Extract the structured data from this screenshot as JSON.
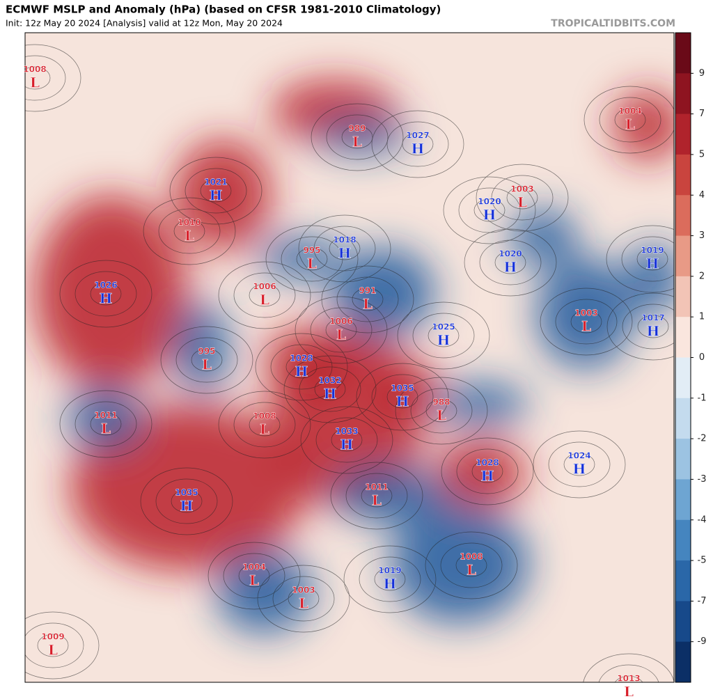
{
  "header": {
    "title": "ECMWF MSLP and Anomaly (hPa) (based on CFSR 1981-2010 Climatology)",
    "subtitle": "Init: 12z May 20 2024   [Analysis]   valid at 12z Mon, May 20 2024",
    "source": "TROPICALTIDBITS.COM"
  },
  "colorbar": {
    "ticks": [
      9,
      7,
      5,
      4,
      3,
      2,
      1,
      0,
      -1,
      -2,
      -3,
      -4,
      -5,
      -7,
      -9
    ]
  },
  "centers": [
    {
      "kind": "L",
      "value": 1008
    },
    {
      "kind": "L",
      "value": 989
    },
    {
      "kind": "H",
      "value": 1027
    },
    {
      "kind": "L",
      "value": 1004
    },
    {
      "kind": "H",
      "value": 1021
    },
    {
      "kind": "L",
      "value": 1003
    },
    {
      "kind": "H",
      "value": 1020
    },
    {
      "kind": "L",
      "value": 1010
    },
    {
      "kind": "H",
      "value": 1018
    },
    {
      "kind": "L",
      "value": 995
    },
    {
      "kind": "H",
      "value": 1020
    },
    {
      "kind": "H",
      "value": 1019
    },
    {
      "kind": "H",
      "value": 1026
    },
    {
      "kind": "L",
      "value": 1006
    },
    {
      "kind": "L",
      "value": 991
    },
    {
      "kind": "L",
      "value": 1006
    },
    {
      "kind": "L",
      "value": 1003
    },
    {
      "kind": "H",
      "value": 1017
    },
    {
      "kind": "H",
      "value": 1025
    },
    {
      "kind": "L",
      "value": 995
    },
    {
      "kind": "H",
      "value": 1028
    },
    {
      "kind": "H",
      "value": 1032
    },
    {
      "kind": "H",
      "value": 1035
    },
    {
      "kind": "L",
      "value": 988
    },
    {
      "kind": "L",
      "value": 1011
    },
    {
      "kind": "L",
      "value": 1008
    },
    {
      "kind": "H",
      "value": 1033
    },
    {
      "kind": "H",
      "value": 1028
    },
    {
      "kind": "H",
      "value": 1024
    },
    {
      "kind": "H",
      "value": 1035
    },
    {
      "kind": "L",
      "value": 1011
    },
    {
      "kind": "L",
      "value": 1008
    },
    {
      "kind": "L",
      "value": 1004
    },
    {
      "kind": "H",
      "value": 1019
    },
    {
      "kind": "L",
      "value": 1003
    },
    {
      "kind": "L",
      "value": 1009
    },
    {
      "kind": "L",
      "value": 1013
    }
  ]
}
